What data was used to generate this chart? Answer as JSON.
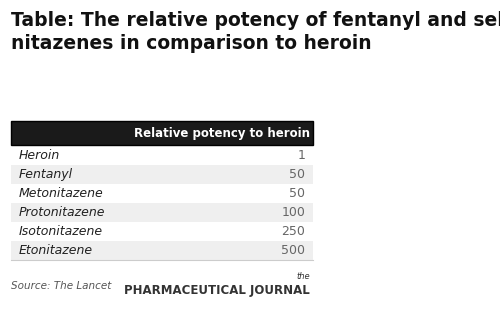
{
  "title": "Table: The relative potency of fentanyl and selected\nnitazenes in comparison to heroin",
  "header_label": "Relative potency to heroin",
  "rows": [
    {
      "name": "Heroin",
      "value": "1"
    },
    {
      "name": "Fentanyl",
      "value": "50"
    },
    {
      "name": "Metonitazene",
      "value": "50"
    },
    {
      "name": "Protonitazene",
      "value": "100"
    },
    {
      "name": "Isotonitazene",
      "value": "250"
    },
    {
      "name": "Etonitazene",
      "value": "500"
    }
  ],
  "source_text": "Source: The Lancet",
  "journal_text_the": "the",
  "journal_text_main": "PHARMACEUTICAL JOURNAL",
  "bg_color": "#ffffff",
  "header_bg": "#1a1a1a",
  "header_text_color": "#ffffff",
  "row_bg_odd": "#ffffff",
  "row_bg_even": "#efefef",
  "row_text_color": "#222222",
  "value_text_color": "#666666",
  "title_fontsize": 13.5,
  "header_fontsize": 8.5,
  "row_fontsize": 9,
  "source_fontsize": 7.5
}
